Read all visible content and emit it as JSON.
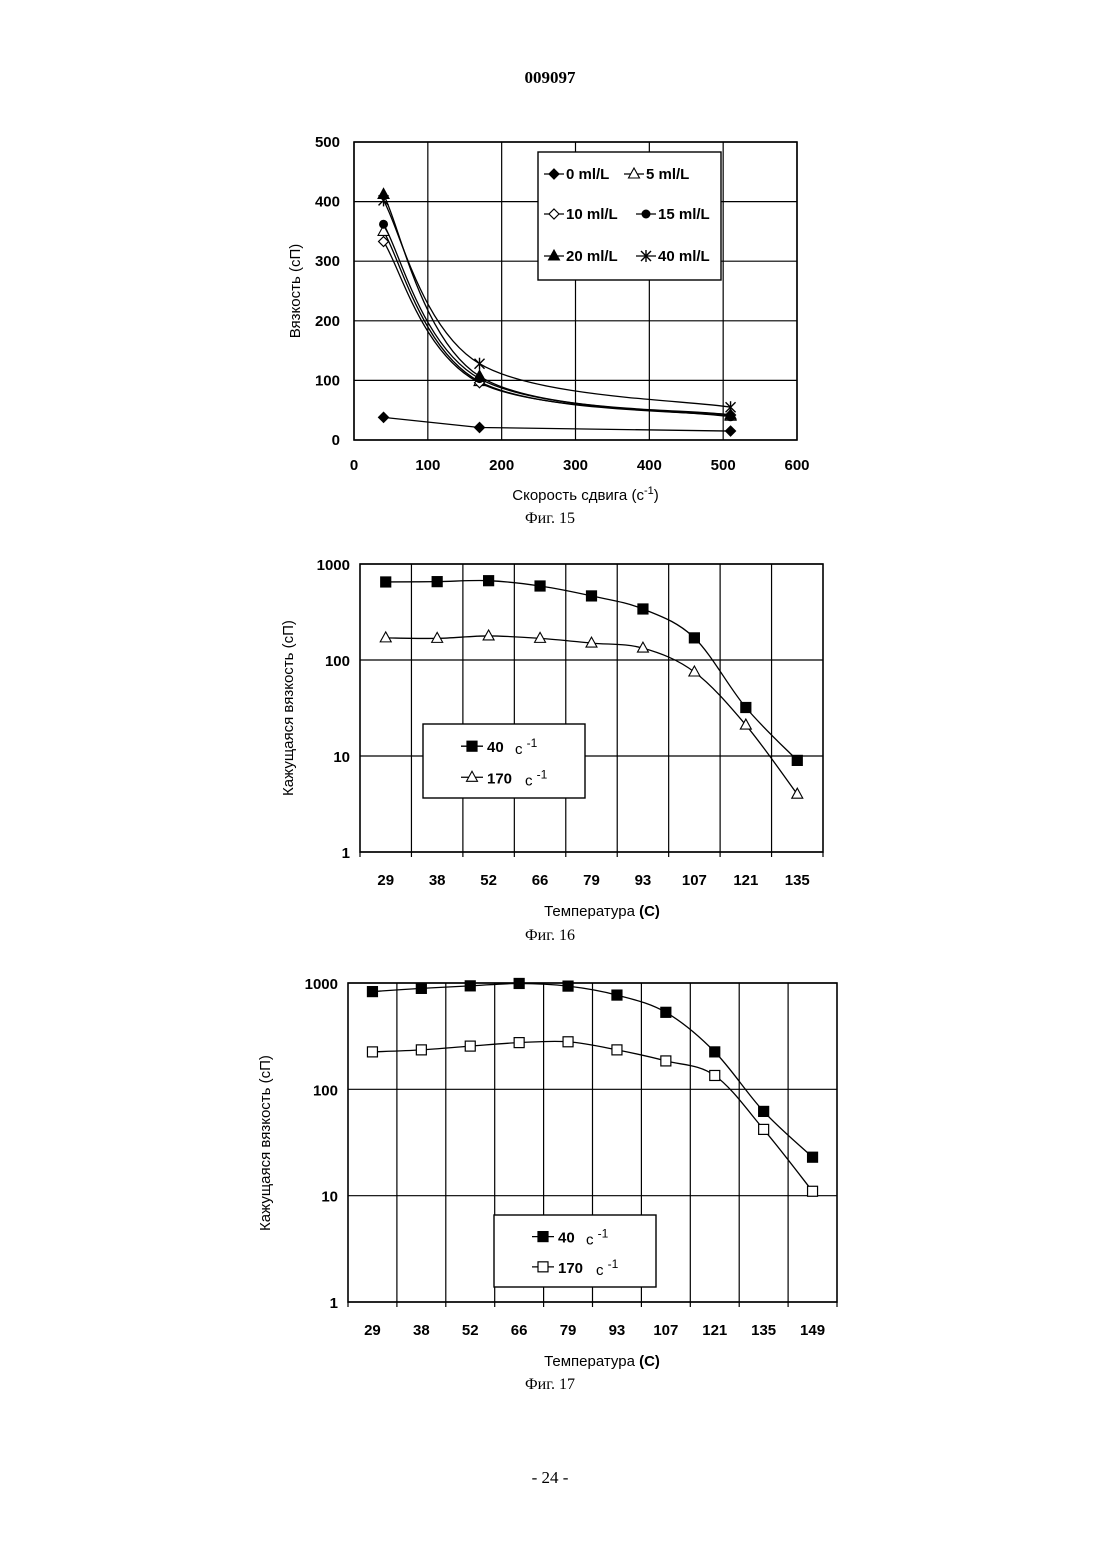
{
  "page": {
    "header": "009097",
    "footer": "- 24 -"
  },
  "chart_data": [
    {
      "type": "line",
      "caption": "Фиг. 15",
      "xlabel": "Скорость сдвига (c",
      "xlabel_sup": "-1",
      "xlabel_close": ")",
      "ylabel": "Вязкость (сП)",
      "xlim": [
        0,
        600
      ],
      "ylim": [
        0,
        500
      ],
      "xticks": [
        "0",
        "100",
        "200",
        "300",
        "400",
        "500",
        "600"
      ],
      "yticks": [
        "0",
        "100",
        "200",
        "300",
        "400",
        "500"
      ],
      "grid": true,
      "legend_position": "top-right",
      "x": [
        40,
        170,
        510
      ],
      "series": [
        {
          "name": "0 ml/L",
          "marker": "diamond-filled",
          "values": [
            38,
            21,
            15
          ]
        },
        {
          "name": "5 ml/L",
          "marker": "triangle-open",
          "values": [
            350,
            98,
            40
          ]
        },
        {
          "name": "10 ml/L",
          "marker": "diamond-open",
          "values": [
            333,
            96,
            42
          ]
        },
        {
          "name": "15 ml/L",
          "marker": "circle-filled",
          "values": [
            362,
            103,
            39
          ]
        },
        {
          "name": "20 ml/L",
          "marker": "triangle-filled",
          "values": [
            412,
            107,
            42
          ]
        },
        {
          "name": "40 ml/L",
          "marker": "star",
          "values": [
            402,
            128,
            55
          ]
        }
      ]
    },
    {
      "type": "line",
      "caption": "Фиг. 16",
      "xlabel": "Температура",
      "xlabel_unit": "(C)",
      "ylabel": "Кажущаяся вязкость (сП)",
      "yscale": "log",
      "ylim": [
        1,
        1000
      ],
      "yticks": [
        "1",
        "10",
        "100",
        "1000"
      ],
      "categories": [
        "29",
        "38",
        "52",
        "66",
        "79",
        "93",
        "107",
        "121",
        "135"
      ],
      "grid": true,
      "legend_position": "bottom-left",
      "series": [
        {
          "name": "40",
          "unit": "c",
          "unit_sup": "-1",
          "marker": "square-filled",
          "values": [
            650,
            655,
            670,
            590,
            465,
            340,
            170,
            32,
            9
          ]
        },
        {
          "name": "170",
          "unit": "c",
          "unit_sup": "-1",
          "marker": "triangle-open",
          "values": [
            170,
            168,
            178,
            168,
            150,
            133,
            75,
            21,
            4
          ]
        }
      ]
    },
    {
      "type": "line",
      "caption": "Фиг. 17",
      "xlabel": "Температура",
      "xlabel_unit": "(C)",
      "ylabel": "Кажущаяся вязкость (сП)",
      "yscale": "log",
      "ylim": [
        1,
        1000
      ],
      "yticks": [
        "1",
        "10",
        "100",
        "1000"
      ],
      "categories": [
        "29",
        "38",
        "52",
        "66",
        "79",
        "93",
        "107",
        "121",
        "135",
        "149"
      ],
      "grid": true,
      "legend_position": "bottom-center",
      "series": [
        {
          "name": "40",
          "unit": "c",
          "unit_sup": "-1",
          "marker": "square-filled",
          "values": [
            830,
            890,
            940,
            990,
            935,
            770,
            530,
            225,
            62,
            23
          ]
        },
        {
          "name": "170",
          "unit": "c",
          "unit_sup": "-1",
          "marker": "square-open",
          "values": [
            225,
            235,
            255,
            275,
            280,
            235,
            185,
            135,
            42,
            11
          ]
        }
      ]
    }
  ]
}
